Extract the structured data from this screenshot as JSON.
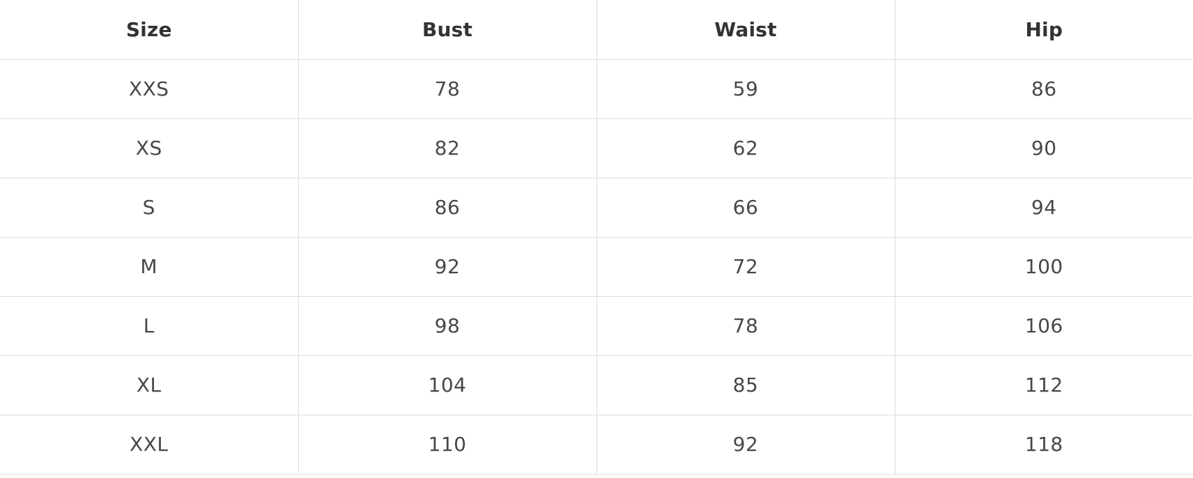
{
  "size_chart": {
    "headers": [
      "Size",
      "Bust",
      "Waist",
      "Hip"
    ],
    "rows": [
      [
        "XXS",
        "78",
        "59",
        "86"
      ],
      [
        "XS",
        "82",
        "62",
        "90"
      ],
      [
        "S",
        "86",
        "66",
        "94"
      ],
      [
        "M",
        "92",
        "72",
        "100"
      ],
      [
        "L",
        "98",
        "78",
        "106"
      ],
      [
        "XL",
        "104",
        "85",
        "112"
      ],
      [
        "XXL",
        "110",
        "92",
        "118"
      ]
    ]
  }
}
